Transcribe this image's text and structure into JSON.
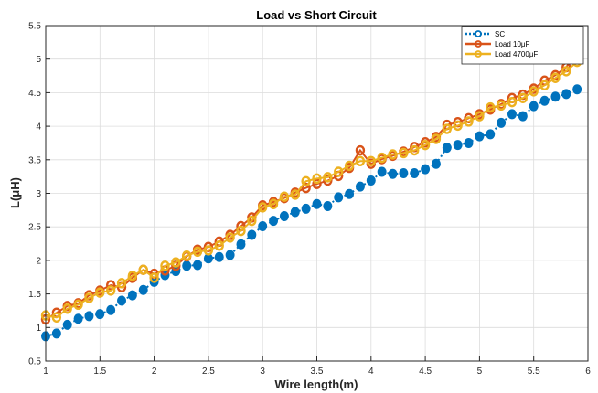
{
  "chart_data": {
    "type": "line",
    "title": "Load vs Short Circuit",
    "xlabel": "Wire length(m)",
    "ylabel": "L(μH)",
    "xlim": [
      1,
      6
    ],
    "ylim": [
      0.5,
      5.5
    ],
    "xticks": [
      "1",
      "1.5",
      "2",
      "2.5",
      "3",
      "3.5",
      "4",
      "4.5",
      "5",
      "5.5",
      "6"
    ],
    "yticks": [
      "0.5",
      "1",
      "1.5",
      "2",
      "2.5",
      "3",
      "3.5",
      "4",
      "4.5",
      "5",
      "5.5"
    ],
    "grid": true,
    "legend_position": "top-right",
    "x": [
      1.0,
      1.1,
      1.2,
      1.3,
      1.4,
      1.5,
      1.6,
      1.7,
      1.8,
      1.9,
      2.0,
      2.1,
      2.2,
      2.3,
      2.4,
      2.5,
      2.6,
      2.7,
      2.8,
      2.9,
      3.0,
      3.1,
      3.2,
      3.3,
      3.4,
      3.5,
      3.6,
      3.7,
      3.8,
      3.9,
      4.0,
      4.1,
      4.2,
      4.3,
      4.4,
      4.5,
      4.6,
      4.7,
      4.8,
      4.9,
      5.0,
      5.1,
      5.2,
      5.3,
      5.4,
      5.5,
      5.6,
      5.7,
      5.8,
      5.9
    ],
    "series": [
      {
        "name": "SC",
        "color": "#0072BD",
        "values": [
          0.87,
          0.91,
          1.04,
          1.13,
          1.17,
          1.2,
          1.26,
          1.4,
          1.48,
          1.56,
          1.68,
          1.78,
          1.84,
          1.92,
          1.93,
          2.03,
          2.05,
          2.08,
          2.24,
          2.38,
          2.51,
          2.59,
          2.66,
          2.72,
          2.77,
          2.84,
          2.81,
          2.94,
          2.99,
          3.1,
          3.19,
          3.32,
          3.29,
          3.3,
          3.3,
          3.36,
          3.44,
          3.68,
          3.72,
          3.75,
          3.85,
          3.88,
          4.05,
          4.18,
          4.15,
          4.3,
          4.38,
          4.44,
          4.48,
          4.55
        ]
      },
      {
        "name": "Load 10μF",
        "color": "#D95319",
        "values": [
          1.12,
          1.22,
          1.32,
          1.36,
          1.48,
          1.55,
          1.63,
          1.6,
          1.74,
          1.86,
          1.8,
          1.85,
          1.92,
          2.06,
          2.16,
          2.2,
          2.28,
          2.38,
          2.51,
          2.64,
          2.82,
          2.87,
          2.93,
          3.01,
          3.08,
          3.14,
          3.19,
          3.26,
          3.38,
          3.64,
          3.44,
          3.51,
          3.56,
          3.62,
          3.69,
          3.76,
          3.84,
          4.02,
          4.06,
          4.12,
          4.18,
          4.25,
          4.33,
          4.42,
          4.47,
          4.56,
          4.68,
          4.76,
          4.88,
          5.11
        ]
      },
      {
        "name": "Load 4700μF",
        "color": "#EDB120",
        "values": [
          1.18,
          1.15,
          1.28,
          1.34,
          1.44,
          1.52,
          1.55,
          1.66,
          1.77,
          1.86,
          1.74,
          1.92,
          1.97,
          2.07,
          2.13,
          2.15,
          2.22,
          2.34,
          2.44,
          2.59,
          2.79,
          2.84,
          2.95,
          2.98,
          3.18,
          3.22,
          3.24,
          3.32,
          3.41,
          3.48,
          3.48,
          3.53,
          3.58,
          3.6,
          3.64,
          3.72,
          3.81,
          3.96,
          4.01,
          4.07,
          4.15,
          4.28,
          4.31,
          4.36,
          4.42,
          4.52,
          4.61,
          4.72,
          4.82,
          4.96
        ]
      }
    ]
  }
}
